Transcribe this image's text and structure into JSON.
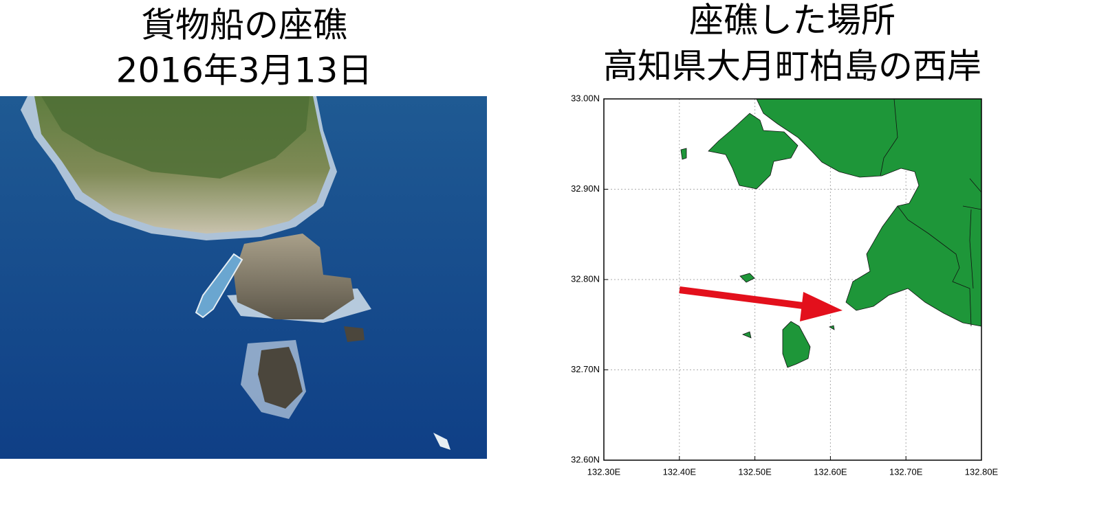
{
  "photo_panel": {
    "title_lines": [
      "貨物船の座礁",
      "2016年3月13日"
    ]
  },
  "map_panel": {
    "title_lines": [
      "座礁した場所",
      "高知県大月町柏島の西岸"
    ],
    "xlim": [
      132.3,
      132.8
    ],
    "ylim": [
      32.6,
      33.0
    ],
    "xticks": [
      {
        "value": 132.3,
        "label": "132.30E"
      },
      {
        "value": 132.4,
        "label": "132.40E"
      },
      {
        "value": 132.5,
        "label": "132.50E"
      },
      {
        "value": 132.6,
        "label": "132.60E"
      },
      {
        "value": 132.7,
        "label": "132.70E"
      },
      {
        "value": 132.8,
        "label": "132.80E"
      }
    ],
    "yticks": [
      {
        "value": 32.6,
        "label": "32.60N"
      },
      {
        "value": 32.7,
        "label": "32.70N"
      },
      {
        "value": 32.8,
        "label": "32.80N"
      },
      {
        "value": 32.9,
        "label": "32.90N"
      },
      {
        "value": 33.0,
        "label": "33.00N"
      }
    ],
    "grid": true,
    "land_color": "#1e9639",
    "arrow_color": "#e3101c"
  }
}
